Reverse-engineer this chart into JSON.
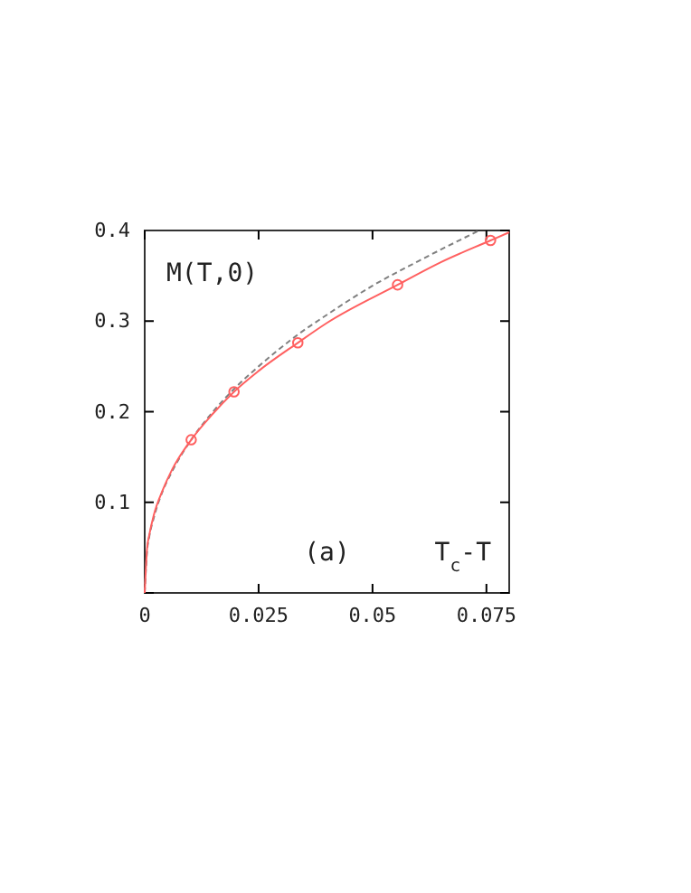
{
  "chart_data": {
    "type": "line",
    "xlabel": "T$_{c}$-T",
    "annotations": [
      "M(T,0)",
      "(a)"
    ],
    "xlim": [
      0,
      0.08
    ],
    "ylim": [
      0,
      0.4
    ],
    "xticks": [
      0,
      0.025,
      0.05,
      0.075
    ],
    "yticks": [
      {
        "value": 0,
        "label": null
      },
      0.1,
      0.2,
      0.3,
      0.4
    ],
    "grid": false,
    "series": [
      {
        "color": "#808080",
        "line_style": "dashed",
        "x": [
          0,
          0.0005,
          0.001,
          0.002,
          0.004,
          0.006,
          0.0102,
          0.015,
          0.02,
          0.025,
          0.0336,
          0.04,
          0.05,
          0.06,
          0.0734
        ],
        "values": [
          0,
          0.045,
          0.062,
          0.083,
          0.113,
          0.134,
          0.169,
          0.2,
          0.227,
          0.25,
          0.285,
          0.307,
          0.339,
          0.366,
          0.4
        ]
      },
      {
        "color": "#ff6060",
        "line_style": "solid",
        "x": [
          0,
          0.0005,
          0.001,
          0.002,
          0.004,
          0.006,
          0.0102,
          0.015,
          0.0196,
          0.025,
          0.0336,
          0.04,
          0.0555,
          0.065,
          0.0759,
          0.08
        ],
        "values": [
          0,
          0.048,
          0.064,
          0.086,
          0.114,
          0.136,
          0.169,
          0.198,
          0.222,
          0.245,
          0.276,
          0.298,
          0.34,
          0.365,
          0.389,
          0.398
        ]
      },
      {
        "type": "scatter",
        "color": "#ff6060",
        "marker": "circle",
        "x": [
          0.0102,
          0.0196,
          0.0336,
          0.0555,
          0.0759
        ],
        "values": [
          0.169,
          0.222,
          0.276,
          0.34,
          0.389
        ]
      }
    ]
  }
}
